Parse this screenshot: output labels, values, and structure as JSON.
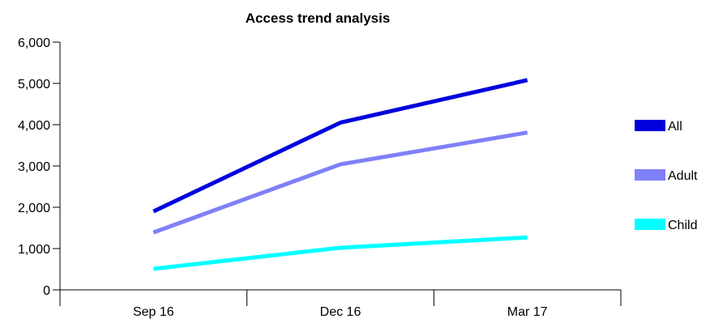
{
  "chart_data": {
    "type": "line",
    "title": "Access trend analysis",
    "categories": [
      "Sep 16",
      "Dec 16",
      "Mar 17"
    ],
    "ylim": [
      0,
      6000
    ],
    "yticks": [
      "0",
      "1,000",
      "2,000",
      "3,000",
      "4,000",
      "5,000",
      "6,000"
    ],
    "series": [
      {
        "name": "All",
        "color": "#0000dd",
        "values": [
          1900,
          4050,
          5080
        ]
      },
      {
        "name": "Adult",
        "color": "#8080f8",
        "values": [
          1390,
          3040,
          3810
        ]
      },
      {
        "name": "Child",
        "color": "#00ffff",
        "values": [
          510,
          1020,
          1270
        ]
      }
    ],
    "grid": false,
    "legend_position": "right"
  }
}
